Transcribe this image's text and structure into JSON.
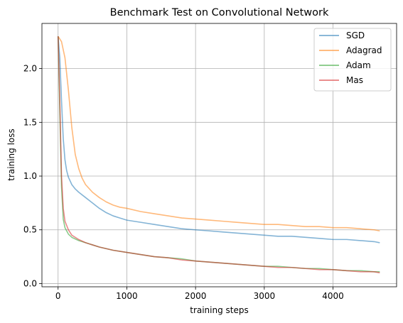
{
  "chart_data": {
    "type": "line",
    "title": "Benchmark Test on Convolutional Network",
    "xlabel": "training steps",
    "ylabel": "training loss",
    "xlim": [
      -235,
      4925
    ],
    "ylim": [
      -0.03,
      2.42
    ],
    "xticks": [
      0,
      1000,
      2000,
      3000,
      4000
    ],
    "yticks": [
      0.0,
      0.5,
      1.0,
      1.5,
      2.0
    ],
    "xtick_labels": [
      "0",
      "1000",
      "2000",
      "3000",
      "4000"
    ],
    "ytick_labels": [
      "0.0",
      "0.5",
      "1.0",
      "1.5",
      "2.0"
    ],
    "grid": true,
    "legend_position": "top-right",
    "series": [
      {
        "name": "SGD",
        "color": "#1f77b4",
        "x": [
          0,
          25,
          50,
          75,
          100,
          125,
          150,
          200,
          250,
          300,
          400,
          500,
          600,
          700,
          800,
          900,
          1000,
          1200,
          1400,
          1600,
          1800,
          2000,
          2200,
          2400,
          2600,
          2800,
          3000,
          3200,
          3400,
          3600,
          3800,
          4000,
          4200,
          4400,
          4600,
          4680
        ],
        "y": [
          2.3,
          2.1,
          1.7,
          1.35,
          1.15,
          1.05,
          0.99,
          0.92,
          0.88,
          0.85,
          0.8,
          0.75,
          0.7,
          0.66,
          0.63,
          0.61,
          0.59,
          0.57,
          0.55,
          0.53,
          0.51,
          0.5,
          0.49,
          0.48,
          0.47,
          0.46,
          0.45,
          0.44,
          0.44,
          0.43,
          0.42,
          0.41,
          0.41,
          0.4,
          0.39,
          0.38
        ]
      },
      {
        "name": "Adagrad",
        "color": "#ff7f0e",
        "x": [
          0,
          50,
          100,
          150,
          200,
          250,
          300,
          350,
          400,
          500,
          600,
          700,
          800,
          900,
          1000,
          1200,
          1400,
          1600,
          1800,
          2000,
          2200,
          2400,
          2600,
          2800,
          3000,
          3200,
          3400,
          3600,
          3800,
          4000,
          4200,
          4400,
          4600,
          4680
        ],
        "y": [
          2.3,
          2.25,
          2.1,
          1.8,
          1.45,
          1.2,
          1.07,
          0.98,
          0.92,
          0.85,
          0.8,
          0.76,
          0.73,
          0.71,
          0.7,
          0.67,
          0.65,
          0.63,
          0.61,
          0.6,
          0.59,
          0.58,
          0.57,
          0.56,
          0.55,
          0.55,
          0.54,
          0.53,
          0.53,
          0.52,
          0.52,
          0.51,
          0.5,
          0.49
        ]
      },
      {
        "name": "Adam",
        "color": "#2ca02c",
        "x": [
          0,
          25,
          50,
          75,
          100,
          150,
          200,
          300,
          400,
          500,
          600,
          800,
          1000,
          1200,
          1400,
          1600,
          1800,
          2000,
          2200,
          2400,
          2600,
          2800,
          3000,
          3200,
          3400,
          3600,
          3800,
          4000,
          4200,
          4400,
          4600,
          4680
        ],
        "y": [
          2.3,
          1.6,
          0.9,
          0.6,
          0.52,
          0.46,
          0.43,
          0.4,
          0.38,
          0.36,
          0.34,
          0.31,
          0.29,
          0.27,
          0.25,
          0.24,
          0.23,
          0.21,
          0.2,
          0.19,
          0.18,
          0.17,
          0.16,
          0.16,
          0.15,
          0.14,
          0.14,
          0.13,
          0.12,
          0.12,
          0.11,
          0.11
        ]
      },
      {
        "name": "Mas",
        "color": "#d62728",
        "x": [
          0,
          25,
          50,
          75,
          100,
          150,
          200,
          300,
          400,
          500,
          600,
          800,
          1000,
          1200,
          1400,
          1600,
          1800,
          2000,
          2200,
          2400,
          2600,
          2800,
          3000,
          3200,
          3400,
          3600,
          3800,
          4000,
          4200,
          4400,
          4600,
          4680
        ],
        "y": [
          2.3,
          1.7,
          1.0,
          0.7,
          0.58,
          0.5,
          0.45,
          0.41,
          0.38,
          0.36,
          0.34,
          0.31,
          0.29,
          0.27,
          0.25,
          0.24,
          0.22,
          0.21,
          0.2,
          0.19,
          0.18,
          0.17,
          0.16,
          0.15,
          0.15,
          0.14,
          0.13,
          0.13,
          0.12,
          0.11,
          0.11,
          0.1
        ]
      }
    ]
  }
}
